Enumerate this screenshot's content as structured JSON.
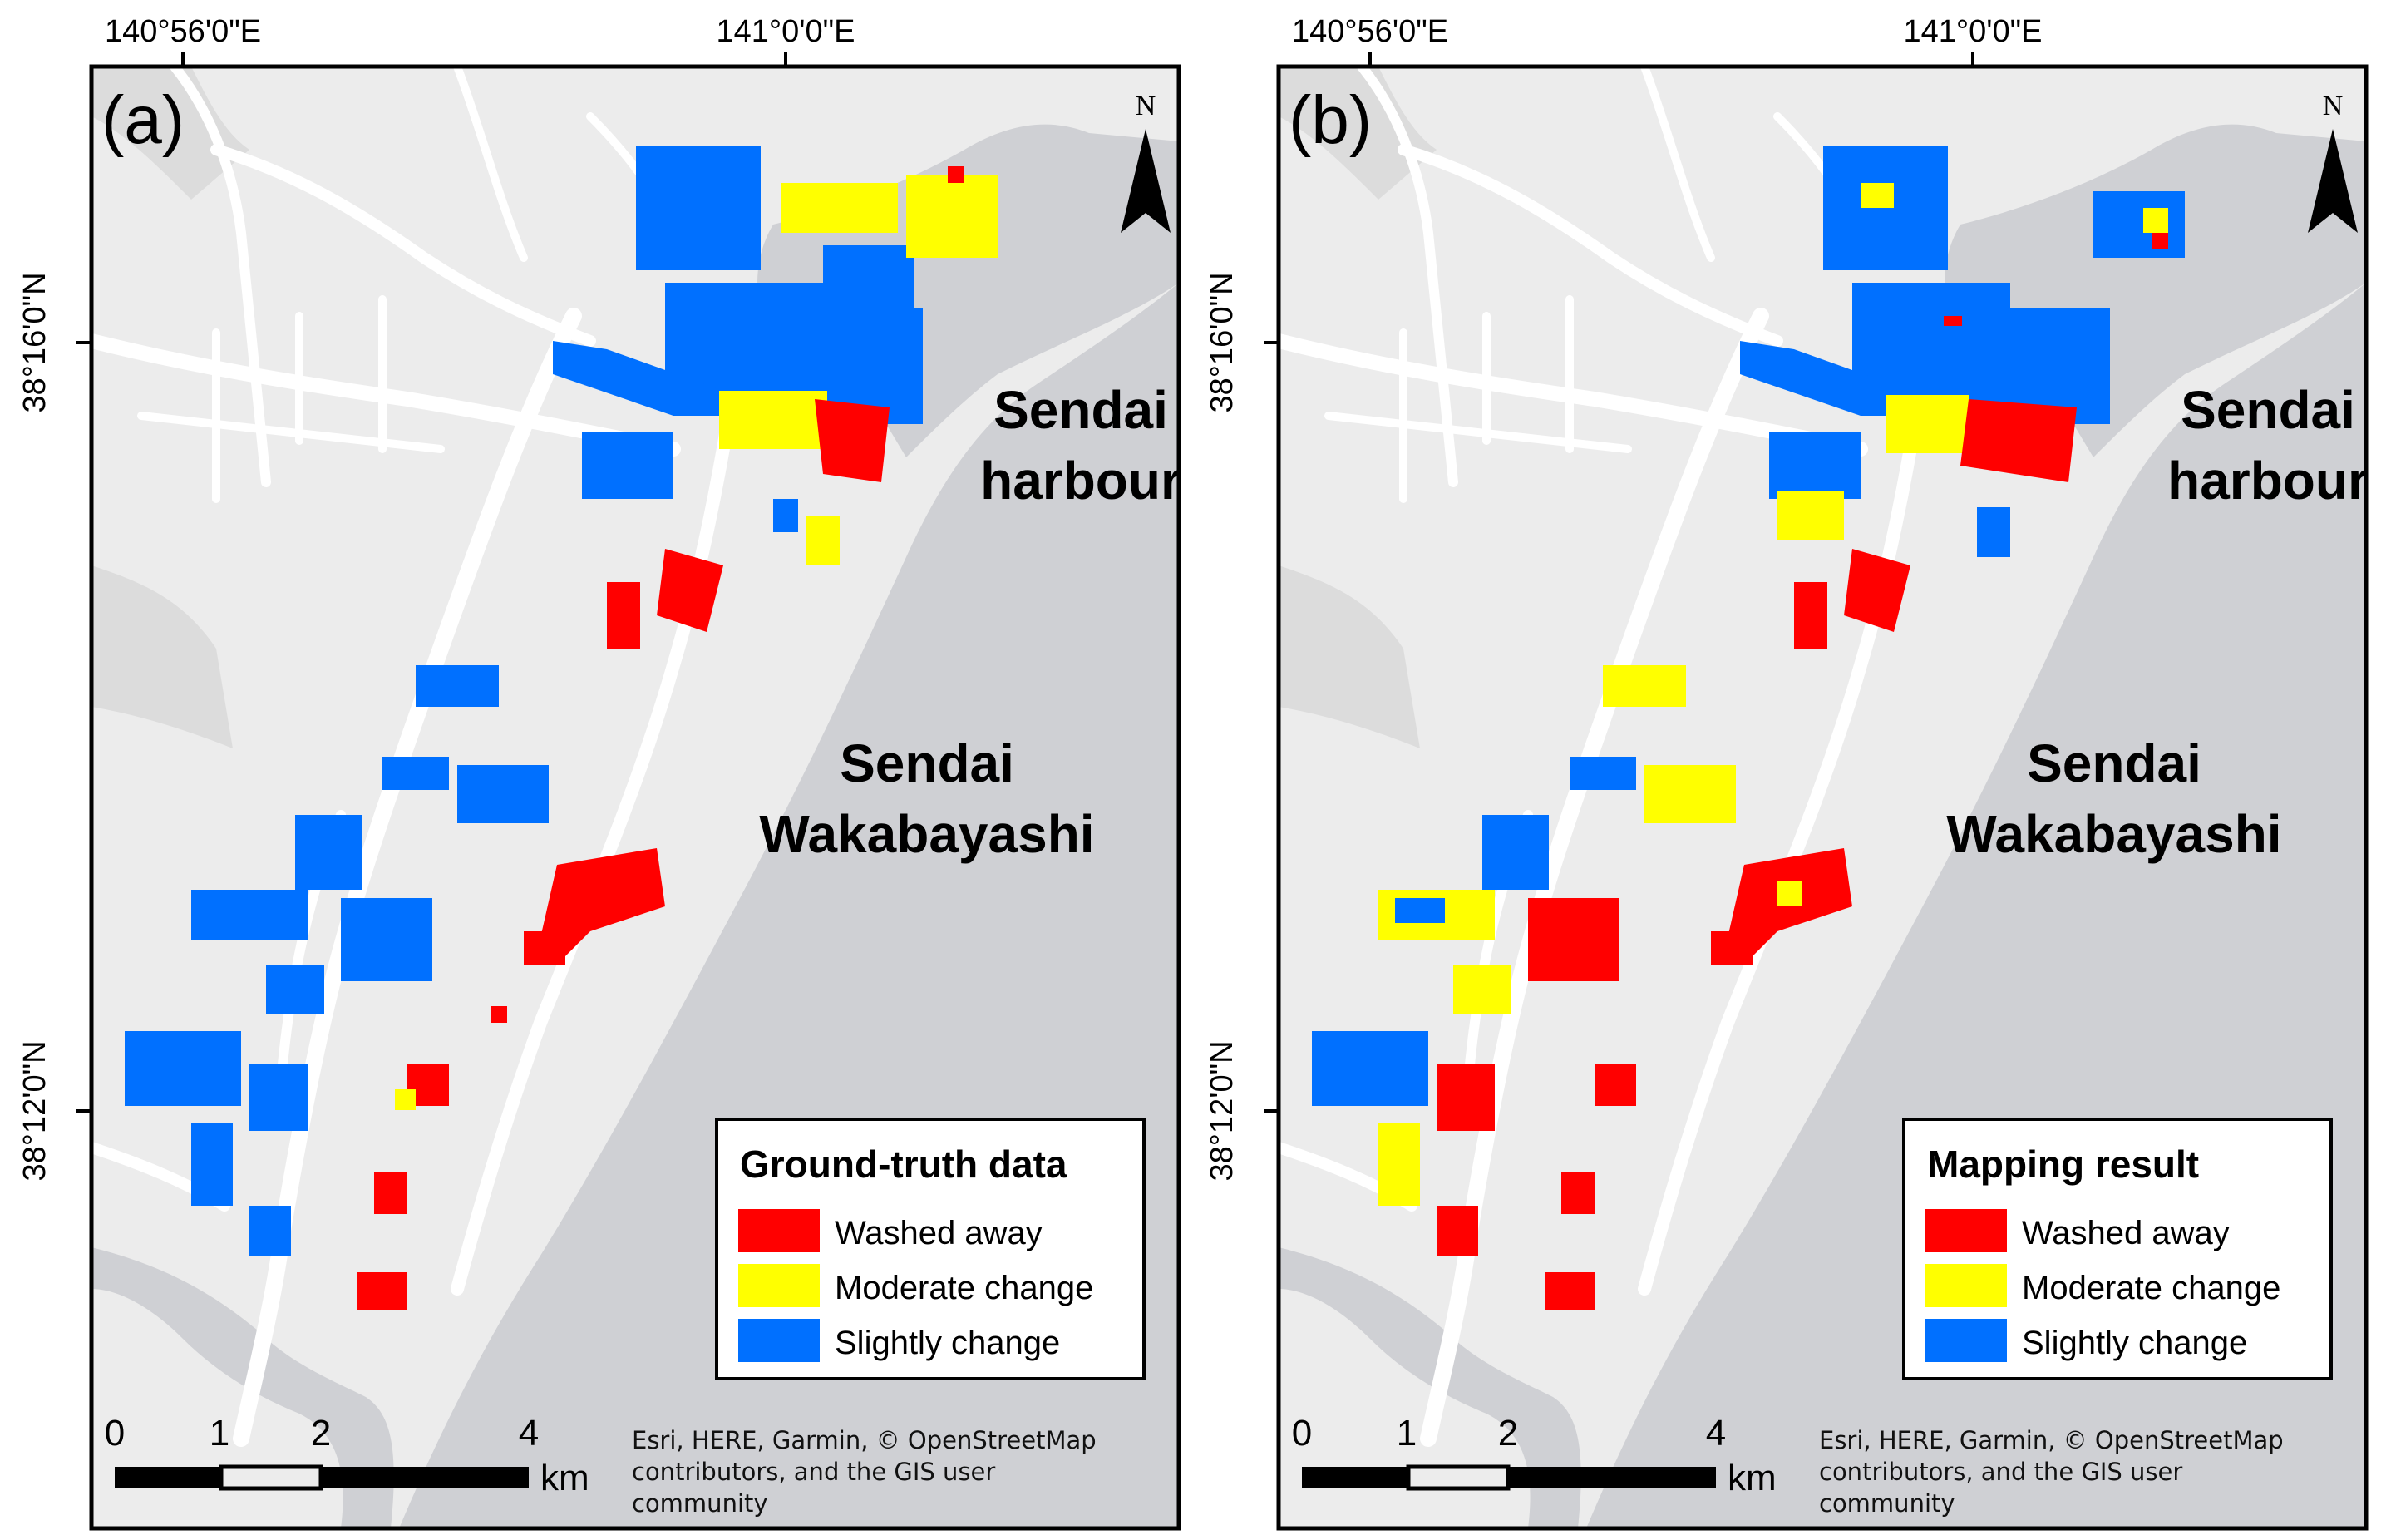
{
  "colors": {
    "washed_away": "#ff0000",
    "moderate_change": "#ffff00",
    "slightly_change": "#0070ff",
    "sea": "#cfd0d4",
    "land": "#ececec",
    "road": "#ffffff"
  },
  "longitude_labels": [
    "140°56'0\"E",
    "141°0'0\"E"
  ],
  "latitude_labels": [
    "38°16'0\"N",
    "38°12'0\"N"
  ],
  "panels": [
    {
      "id": "a",
      "letter": "(a)",
      "north_label": "N",
      "place_labels": [
        "Sendai",
        "harbour",
        "Sendai",
        "Wakabayashi"
      ],
      "legend": {
        "title": "Ground-truth data",
        "items": [
          "Washed away",
          "Moderate change",
          "Slightly change"
        ]
      },
      "scale": {
        "ticks": [
          "0",
          "1",
          "2",
          "4"
        ],
        "unit": "km"
      },
      "attribution": [
        "Esri, HERE, Garmin, © OpenStreetMap",
        "contributors, and the GIS user",
        "community"
      ]
    },
    {
      "id": "b",
      "letter": "(b)",
      "north_label": "N",
      "place_labels": [
        "Sendai",
        "harbour",
        "Sendai",
        "Wakabayashi"
      ],
      "legend": {
        "title": "Mapping result",
        "items": [
          "Washed away",
          "Moderate change",
          "Slightly change"
        ]
      },
      "scale": {
        "ticks": [
          "0",
          "1",
          "2",
          "4"
        ],
        "unit": "km"
      },
      "attribution": [
        "Esri, HERE, Garmin, © OpenStreetMap",
        "contributors, and the GIS user",
        "community"
      ]
    }
  ]
}
